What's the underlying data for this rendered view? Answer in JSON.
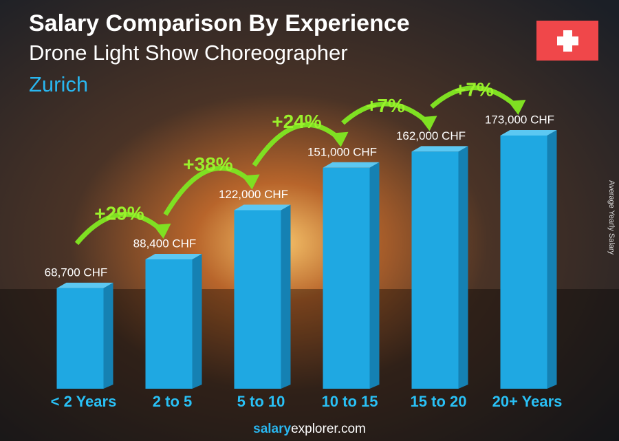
{
  "chart_data": {
    "type": "bar",
    "title": "Salary Comparison By Experience",
    "subtitle": "Drone Light Show Choreographer",
    "location": "Zurich",
    "y_axis_label": "Average Yearly Salary",
    "categories": [
      "< 2 Years",
      "2 to 5",
      "5 to 10",
      "10 to 15",
      "15 to 20",
      "20+ Years"
    ],
    "values": [
      68700,
      88400,
      122000,
      151000,
      162000,
      173000
    ],
    "value_labels": [
      "68,700 CHF",
      "88,400 CHF",
      "122,000 CHF",
      "151,000 CHF",
      "162,000 CHF",
      "173,000 CHF"
    ],
    "changes": [
      "+29%",
      "+38%",
      "+24%",
      "+7%",
      "+7%"
    ],
    "color": "#1fa8e2",
    "footer": {
      "brand": "salary",
      "domain": "explorer.com"
    }
  }
}
